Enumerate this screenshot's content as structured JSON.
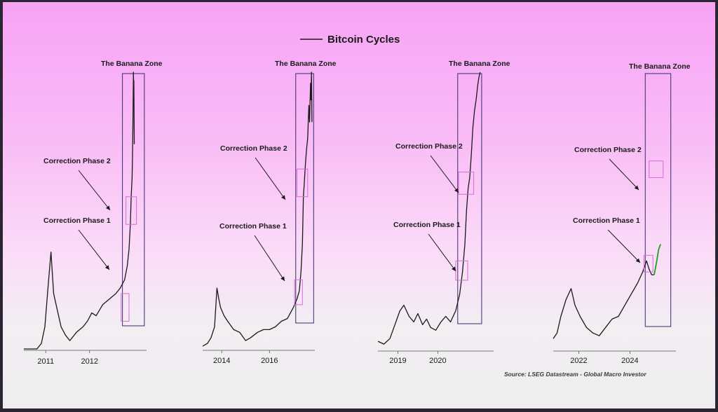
{
  "chart_data": {
    "type": "line",
    "title": "Bitcoin Cycles",
    "legend_entry": "Bitcoin Cycles",
    "source": "Source: LSEG Datastream - Global Macro Investor",
    "zone_label": "The Banana Zone",
    "phase1_label": "Correction Phase 1",
    "phase2_label": "Correction Phase 2",
    "colors": {
      "price": "#1a1a1a",
      "current": "#1fa01f",
      "zone": "#3a2a6a",
      "phase_box": "#d86ad8"
    },
    "panels": [
      {
        "xlim": [
          2010.5,
          2013.3
        ],
        "ticks": [
          "2011",
          "2012"
        ],
        "tick_values": [
          2011.0,
          2012.0
        ],
        "zone": [
          2012.75,
          2013.25
        ],
        "phase1": [
          2012.72,
          2012.9,
          0.1,
          0.2
        ],
        "phase2": [
          2012.83,
          2013.07,
          0.45,
          0.55
        ],
        "series": [
          [
            2010.5,
            0.0
          ],
          [
            2010.8,
            0.0
          ],
          [
            2010.9,
            0.02
          ],
          [
            2010.98,
            0.08
          ],
          [
            2011.05,
            0.22
          ],
          [
            2011.12,
            0.35
          ],
          [
            2011.18,
            0.2
          ],
          [
            2011.25,
            0.15
          ],
          [
            2011.35,
            0.08
          ],
          [
            2011.45,
            0.05
          ],
          [
            2011.55,
            0.03
          ],
          [
            2011.7,
            0.06
          ],
          [
            2011.85,
            0.08
          ],
          [
            2011.95,
            0.1
          ],
          [
            2012.05,
            0.13
          ],
          [
            2012.15,
            0.12
          ],
          [
            2012.3,
            0.16
          ],
          [
            2012.45,
            0.18
          ],
          [
            2012.6,
            0.2
          ],
          [
            2012.7,
            0.22
          ],
          [
            2012.8,
            0.25
          ],
          [
            2012.86,
            0.3
          ],
          [
            2012.9,
            0.36
          ],
          [
            2012.93,
            0.45
          ],
          [
            2012.95,
            0.55
          ],
          [
            2012.97,
            0.62
          ],
          [
            2012.98,
            0.7
          ],
          [
            2012.99,
            0.82
          ],
          [
            2013.0,
            1.0
          ],
          [
            2013.005,
            0.93
          ],
          [
            2013.01,
            0.97
          ],
          [
            2013.02,
            0.74
          ]
        ]
      },
      {
        "xlim": [
          2013.2,
          2017.9
        ],
        "ticks": [
          "2014",
          "2016"
        ],
        "tick_values": [
          2014.0,
          2016.0
        ],
        "zone": [
          2017.1,
          2017.85
        ],
        "phase1": [
          2017.05,
          2017.38,
          0.16,
          0.25
        ],
        "phase2": [
          2017.15,
          2017.6,
          0.55,
          0.65
        ],
        "series": [
          [
            2013.2,
            0.01
          ],
          [
            2013.4,
            0.02
          ],
          [
            2013.55,
            0.04
          ],
          [
            2013.7,
            0.08
          ],
          [
            2013.8,
            0.22
          ],
          [
            2013.88,
            0.18
          ],
          [
            2013.95,
            0.15
          ],
          [
            2014.1,
            0.12
          ],
          [
            2014.25,
            0.1
          ],
          [
            2014.5,
            0.07
          ],
          [
            2014.75,
            0.06
          ],
          [
            2015.0,
            0.03
          ],
          [
            2015.2,
            0.04
          ],
          [
            2015.5,
            0.06
          ],
          [
            2015.75,
            0.07
          ],
          [
            2016.0,
            0.07
          ],
          [
            2016.25,
            0.08
          ],
          [
            2016.5,
            0.1
          ],
          [
            2016.75,
            0.11
          ],
          [
            2017.0,
            0.15
          ],
          [
            2017.15,
            0.18
          ],
          [
            2017.25,
            0.21
          ],
          [
            2017.32,
            0.28
          ],
          [
            2017.38,
            0.38
          ],
          [
            2017.42,
            0.55
          ],
          [
            2017.46,
            0.6
          ],
          [
            2017.5,
            0.66
          ],
          [
            2017.55,
            0.72
          ],
          [
            2017.6,
            0.76
          ],
          [
            2017.65,
            0.88
          ],
          [
            2017.68,
            0.82
          ],
          [
            2017.72,
            0.96
          ],
          [
            2017.74,
            0.9
          ],
          [
            2017.76,
            1.0
          ],
          [
            2017.78,
            0.82
          ]
        ]
      },
      {
        "xlim": [
          2018.5,
          2021.4
        ],
        "ticks": [
          "2019",
          "2020"
        ],
        "tick_values": [
          2019.0,
          2020.0
        ],
        "zone": [
          2020.5,
          2021.1
        ],
        "phase1": [
          2020.45,
          2020.75,
          0.25,
          0.32
        ],
        "phase2": [
          2020.52,
          2020.9,
          0.56,
          0.64
        ],
        "series": [
          [
            2018.5,
            0.03
          ],
          [
            2018.65,
            0.02
          ],
          [
            2018.8,
            0.04
          ],
          [
            2018.9,
            0.08
          ],
          [
            2019.05,
            0.14
          ],
          [
            2019.15,
            0.16
          ],
          [
            2019.28,
            0.12
          ],
          [
            2019.4,
            0.1
          ],
          [
            2019.5,
            0.13
          ],
          [
            2019.62,
            0.09
          ],
          [
            2019.72,
            0.11
          ],
          [
            2019.82,
            0.08
          ],
          [
            2019.95,
            0.07
          ],
          [
            2020.08,
            0.1
          ],
          [
            2020.2,
            0.12
          ],
          [
            2020.32,
            0.1
          ],
          [
            2020.45,
            0.14
          ],
          [
            2020.55,
            0.2
          ],
          [
            2020.62,
            0.28
          ],
          [
            2020.68,
            0.38
          ],
          [
            2020.72,
            0.5
          ],
          [
            2020.76,
            0.58
          ],
          [
            2020.8,
            0.62
          ],
          [
            2020.84,
            0.7
          ],
          [
            2020.88,
            0.8
          ],
          [
            2020.92,
            0.86
          ],
          [
            2020.96,
            0.9
          ],
          [
            2021.0,
            0.95
          ],
          [
            2021.03,
            0.98
          ],
          [
            2021.06,
            1.0
          ]
        ]
      },
      {
        "xlim": [
          2021.0,
          2025.8
        ],
        "ticks": [
          "2022",
          "2024"
        ],
        "tick_values": [
          2022.0,
          2024.0
        ],
        "zone": [
          2024.6,
          2025.6
        ],
        "phase1": [
          2024.55,
          2024.9,
          0.28,
          0.34
        ],
        "phase2": [
          2024.75,
          2025.3,
          0.62,
          0.68
        ],
        "series": [
          [
            2021.0,
            0.04
          ],
          [
            2021.15,
            0.06
          ],
          [
            2021.3,
            0.12
          ],
          [
            2021.5,
            0.18
          ],
          [
            2021.7,
            0.22
          ],
          [
            2021.85,
            0.16
          ],
          [
            2022.05,
            0.12
          ],
          [
            2022.3,
            0.08
          ],
          [
            2022.55,
            0.06
          ],
          [
            2022.8,
            0.05
          ],
          [
            2023.05,
            0.08
          ],
          [
            2023.3,
            0.11
          ],
          [
            2023.55,
            0.12
          ],
          [
            2023.8,
            0.16
          ],
          [
            2024.05,
            0.2
          ],
          [
            2024.3,
            0.24
          ],
          [
            2024.5,
            0.28
          ],
          [
            2024.65,
            0.32
          ],
          [
            2024.75,
            0.29
          ],
          [
            2024.85,
            0.27
          ],
          [
            2024.95,
            0.27
          ]
        ],
        "current_series": [
          [
            2024.95,
            0.27
          ],
          [
            2025.05,
            0.32
          ],
          [
            2025.12,
            0.36
          ],
          [
            2025.2,
            0.38
          ]
        ]
      }
    ]
  }
}
